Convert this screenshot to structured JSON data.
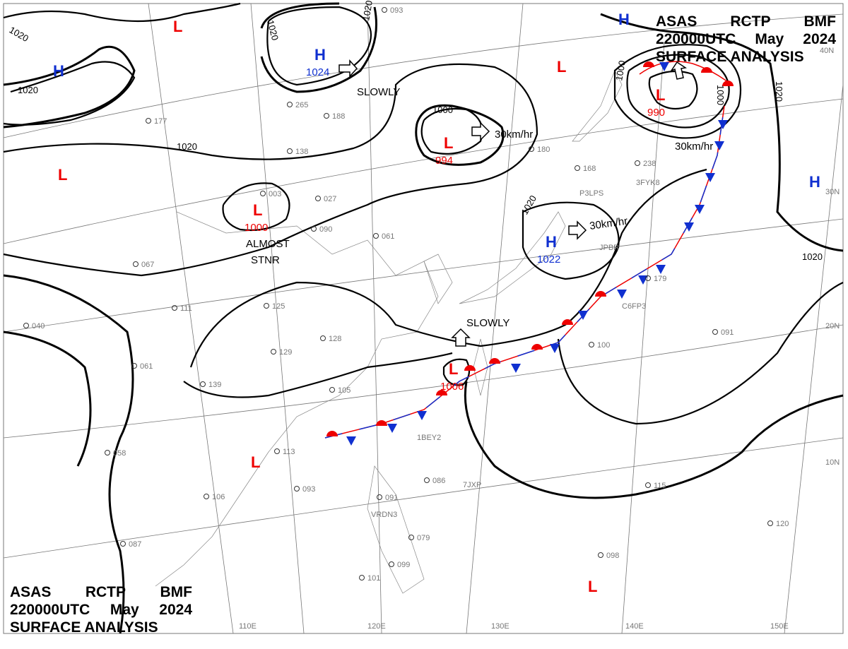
{
  "title": {
    "line1": [
      "ASAS",
      "RCTP",
      "BMF"
    ],
    "line2": [
      "220000UTC",
      "May",
      "2024"
    ],
    "line3": "SURFACE ANALYSIS"
  },
  "grid_labels": {
    "lon": [
      "110E",
      "120E",
      "130E",
      "140E",
      "150E"
    ],
    "lat": [
      "40N",
      "30N",
      "20N",
      "10N"
    ]
  },
  "pressure_centers": [
    {
      "type": "L",
      "value": ""
    },
    {
      "type": "H",
      "value": ""
    },
    {
      "type": "H",
      "value": "1024"
    },
    {
      "type": "L",
      "value": "994"
    },
    {
      "type": "L",
      "value": ""
    },
    {
      "type": "H",
      "value": ""
    },
    {
      "type": "L",
      "value": "990"
    },
    {
      "type": "L",
      "value": ""
    },
    {
      "type": "L",
      "value": "1000"
    },
    {
      "type": "H",
      "value": "1022"
    },
    {
      "type": "H",
      "value": ""
    },
    {
      "type": "L",
      "value": "1006"
    },
    {
      "type": "L",
      "value": ""
    },
    {
      "type": "L",
      "value": ""
    }
  ],
  "isobar_labels": [
    "1020",
    "1020",
    "1020",
    "1020",
    "1000",
    "1000",
    "1000",
    "1020",
    "1020",
    "1020",
    "1020"
  ],
  "movements": [
    "SLOWLY",
    "30km/hr",
    "30km/hr",
    "30km/hr",
    "ALMOST",
    "STNR",
    "SLOWLY"
  ],
  "station_samples": [
    "003",
    "027",
    "090",
    "061",
    "067",
    "040",
    "061",
    "058",
    "111",
    "125",
    "128",
    "129",
    "139",
    "105",
    "113",
    "106",
    "093",
    "087",
    "091",
    "086",
    "079",
    "099",
    "101",
    "115",
    "098",
    "120",
    "091",
    "100",
    "179",
    "168",
    "238",
    "265",
    "138",
    "177",
    "093",
    "188",
    "180"
  ],
  "ship_calls": [
    "VRDN3",
    "7JXP",
    "C6FP3",
    "3FYK8",
    "P3LPS",
    "JPBR",
    "1BEY2"
  ],
  "colors": {
    "low": "#e00000",
    "high": "#1030d0",
    "isobar": "#000000",
    "grid": "#777777"
  }
}
